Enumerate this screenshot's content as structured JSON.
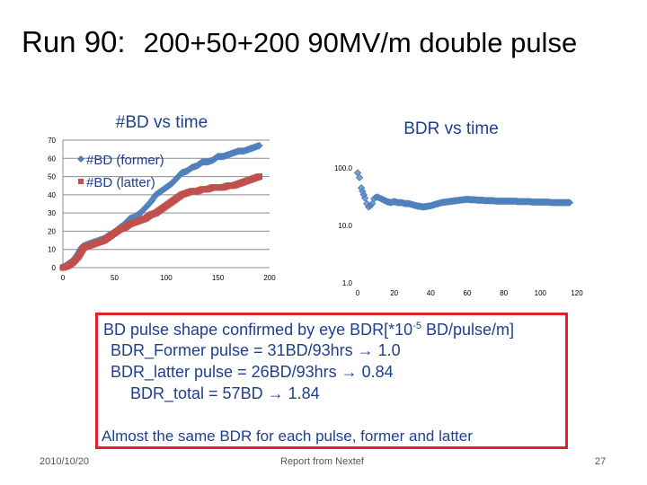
{
  "slide": {
    "title": "Run 90:",
    "subtitle": "200+50+200  90MV/m double pulse"
  },
  "chart_data": [
    {
      "type": "scatter",
      "title": "#BD vs time",
      "xlabel": "",
      "ylabel": "",
      "xlim": [
        0,
        200
      ],
      "ylim": [
        0,
        70
      ],
      "xticks": [
        "0",
        "50",
        "100",
        "150",
        "200"
      ],
      "yticks": [
        "0",
        "10",
        "20",
        "30",
        "40",
        "50",
        "60",
        "70"
      ],
      "legend_position": "top-left",
      "series": [
        {
          "name": "#BD (former)",
          "color": "#4f81bd",
          "marker": "diamond",
          "x": [
            0,
            5,
            10,
            15,
            18,
            20,
            25,
            30,
            35,
            40,
            45,
            50,
            55,
            60,
            65,
            70,
            75,
            80,
            85,
            90,
            95,
            100,
            105,
            110,
            115,
            120,
            125,
            130,
            135,
            140,
            145,
            150,
            155,
            160,
            165,
            170,
            175,
            180,
            185,
            190
          ],
          "y": [
            0,
            2,
            4,
            8,
            11,
            12,
            13,
            14,
            15,
            16,
            18,
            19,
            22,
            24,
            27,
            28,
            30,
            33,
            36,
            40,
            42,
            44,
            46,
            49,
            52,
            53,
            55,
            56,
            58,
            58,
            59,
            61,
            61,
            62,
            63,
            64,
            64,
            65,
            66,
            67
          ]
        },
        {
          "name": "#BD (latter)",
          "color": "#c0504d",
          "marker": "square",
          "x": [
            0,
            5,
            10,
            15,
            18,
            20,
            25,
            30,
            35,
            40,
            45,
            50,
            55,
            60,
            65,
            70,
            75,
            80,
            85,
            90,
            95,
            100,
            105,
            110,
            115,
            120,
            125,
            130,
            135,
            140,
            145,
            150,
            155,
            160,
            165,
            170,
            175,
            180,
            185,
            190
          ],
          "y": [
            0,
            1,
            3,
            6,
            9,
            11,
            12,
            13,
            14,
            15,
            17,
            19,
            21,
            22,
            24,
            25,
            26,
            27,
            29,
            30,
            32,
            34,
            36,
            38,
            40,
            41,
            42,
            42,
            43,
            43,
            44,
            44,
            44,
            45,
            45,
            46,
            47,
            48,
            49,
            50
          ]
        }
      ]
    },
    {
      "type": "scatter",
      "title": "BDR vs time",
      "xlabel": "",
      "ylabel": "",
      "xlim": [
        0,
        120
      ],
      "ylim": [
        1,
        100
      ],
      "yscale": "log",
      "xticks": [
        "0",
        "20",
        "40",
        "60",
        "80",
        "100",
        "120"
      ],
      "yticks": [
        "1.0",
        "10.0",
        "100.0"
      ],
      "series": [
        {
          "name": "BDR",
          "color": "#4f81bd",
          "marker": "diamond",
          "x": [
            0,
            1,
            2,
            4,
            5,
            6,
            7,
            8,
            9,
            10,
            11,
            12,
            13,
            14,
            16,
            18,
            20,
            22,
            24,
            26,
            28,
            30,
            32,
            34,
            36,
            38,
            40,
            42,
            44,
            46,
            48,
            50,
            52,
            54,
            56,
            58,
            60,
            62,
            64,
            66,
            68,
            70,
            72,
            74,
            76,
            78,
            80,
            82,
            84,
            86,
            88,
            90,
            92,
            94,
            96,
            98,
            100,
            102,
            104,
            106,
            108,
            110,
            112,
            114,
            116
          ],
          "y": [
            82,
            68,
            45,
            30,
            24,
            21,
            22,
            24,
            29,
            31,
            31,
            30,
            29,
            28,
            26,
            25,
            26,
            25,
            25,
            24,
            24,
            23,
            22,
            21.5,
            21,
            21.5,
            22,
            23,
            24,
            25,
            25.5,
            26,
            26.5,
            27,
            27.5,
            28,
            28.5,
            28,
            28,
            27.5,
            27.5,
            27,
            27,
            27,
            26.5,
            26.5,
            26.5,
            26.5,
            26.5,
            26.5,
            26,
            26,
            26,
            26,
            25.5,
            25.5,
            25.5,
            25.5,
            25.5,
            25,
            25,
            25,
            25,
            25,
            25
          ]
        }
      ]
    }
  ],
  "notes": {
    "line1_prefix": "BD pulse shape confirmed by eye     BDR[*10",
    "line1_exp": "-5",
    "line1_suffix": " BD/pulse/m]",
    "line2": "BDR_Former pulse  = 31BD/93hrs  → 1.0",
    "line3": "BDR_latter pulse    = 26BD/93hrs  → 0.84",
    "line4": "BDR_total   =  57BD  → 1.84",
    "line5": "Almost the same BDR for each pulse, former and latter"
  },
  "footer": {
    "date": "2010/10/20",
    "center": "Report from Nextef",
    "page": "27"
  }
}
